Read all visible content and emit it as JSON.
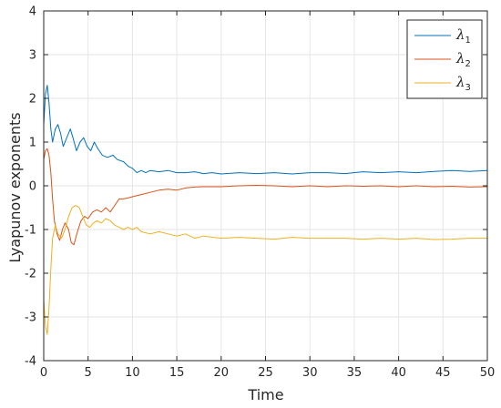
{
  "chart_data": {
    "type": "line",
    "title": "",
    "xlabel": "Time",
    "ylabel": "Lyapunov exponents",
    "xlim": [
      0,
      50
    ],
    "ylim": [
      -4,
      4
    ],
    "xticks": [
      0,
      5,
      10,
      15,
      20,
      25,
      30,
      35,
      40,
      45,
      50
    ],
    "yticks": [
      -4,
      -3,
      -2,
      -1,
      0,
      1,
      2,
      3,
      4
    ],
    "grid": true,
    "legend_position": "top-right",
    "series": [
      {
        "name_symbol": "λ",
        "name_sub": "1",
        "color": "#0072BD",
        "points": [
          [
            0,
            1.4
          ],
          [
            0.2,
            2.1
          ],
          [
            0.4,
            2.3
          ],
          [
            0.6,
            1.9
          ],
          [
            0.8,
            1.3
          ],
          [
            1.0,
            1.0
          ],
          [
            1.3,
            1.3
          ],
          [
            1.6,
            1.4
          ],
          [
            1.9,
            1.2
          ],
          [
            2.2,
            0.9
          ],
          [
            2.6,
            1.1
          ],
          [
            3.0,
            1.3
          ],
          [
            3.3,
            1.1
          ],
          [
            3.7,
            0.8
          ],
          [
            4.1,
            1.0
          ],
          [
            4.5,
            1.1
          ],
          [
            4.9,
            0.9
          ],
          [
            5.3,
            0.8
          ],
          [
            5.7,
            1.0
          ],
          [
            6.1,
            0.85
          ],
          [
            6.6,
            0.7
          ],
          [
            7.2,
            0.65
          ],
          [
            7.8,
            0.7
          ],
          [
            8.3,
            0.6
          ],
          [
            9.0,
            0.55
          ],
          [
            9.5,
            0.45
          ],
          [
            10.0,
            0.4
          ],
          [
            10.5,
            0.3
          ],
          [
            11.0,
            0.35
          ],
          [
            11.5,
            0.3
          ],
          [
            12.0,
            0.35
          ],
          [
            13.0,
            0.32
          ],
          [
            14.0,
            0.35
          ],
          [
            15.0,
            0.3
          ],
          [
            16.0,
            0.3
          ],
          [
            17.0,
            0.32
          ],
          [
            18.0,
            0.28
          ],
          [
            19.0,
            0.3
          ],
          [
            20.0,
            0.27
          ],
          [
            22.0,
            0.3
          ],
          [
            24.0,
            0.28
          ],
          [
            26.0,
            0.3
          ],
          [
            28.0,
            0.27
          ],
          [
            30.0,
            0.3
          ],
          [
            32.0,
            0.3
          ],
          [
            34.0,
            0.28
          ],
          [
            36.0,
            0.32
          ],
          [
            38.0,
            0.3
          ],
          [
            40.0,
            0.32
          ],
          [
            42.0,
            0.3
          ],
          [
            44.0,
            0.33
          ],
          [
            46.0,
            0.35
          ],
          [
            48.0,
            0.33
          ],
          [
            50.0,
            0.35
          ]
        ]
      },
      {
        "name_symbol": "λ",
        "name_sub": "2",
        "color": "#D95319",
        "points": [
          [
            0,
            0.6
          ],
          [
            0.2,
            0.8
          ],
          [
            0.4,
            0.85
          ],
          [
            0.6,
            0.7
          ],
          [
            0.8,
            0.3
          ],
          [
            1.0,
            -0.3
          ],
          [
            1.2,
            -0.8
          ],
          [
            1.5,
            -1.1
          ],
          [
            1.8,
            -1.25
          ],
          [
            2.1,
            -1.0
          ],
          [
            2.4,
            -0.85
          ],
          [
            2.8,
            -1.0
          ],
          [
            3.1,
            -1.3
          ],
          [
            3.4,
            -1.35
          ],
          [
            3.8,
            -1.05
          ],
          [
            4.2,
            -0.8
          ],
          [
            4.6,
            -0.7
          ],
          [
            5.0,
            -0.75
          ],
          [
            5.5,
            -0.6
          ],
          [
            6.0,
            -0.55
          ],
          [
            6.5,
            -0.6
          ],
          [
            7.0,
            -0.5
          ],
          [
            7.5,
            -0.6
          ],
          [
            8.0,
            -0.45
          ],
          [
            8.5,
            -0.3
          ],
          [
            9.0,
            -0.3
          ],
          [
            9.5,
            -0.28
          ],
          [
            10.0,
            -0.25
          ],
          [
            11.0,
            -0.2
          ],
          [
            12.0,
            -0.15
          ],
          [
            13.0,
            -0.1
          ],
          [
            14.0,
            -0.08
          ],
          [
            15.0,
            -0.1
          ],
          [
            16.0,
            -0.05
          ],
          [
            17.0,
            -0.03
          ],
          [
            18.0,
            -0.02
          ],
          [
            20.0,
            -0.02
          ],
          [
            22.0,
            0.0
          ],
          [
            24.0,
            0.01
          ],
          [
            26.0,
            0.0
          ],
          [
            28.0,
            -0.02
          ],
          [
            30.0,
            0.0
          ],
          [
            32.0,
            -0.02
          ],
          [
            34.0,
            0.0
          ],
          [
            36.0,
            -0.01
          ],
          [
            38.0,
            0.0
          ],
          [
            40.0,
            -0.02
          ],
          [
            42.0,
            0.0
          ],
          [
            44.0,
            -0.02
          ],
          [
            46.0,
            -0.01
          ],
          [
            48.0,
            -0.03
          ],
          [
            50.0,
            -0.02
          ]
        ]
      },
      {
        "name_symbol": "λ",
        "name_sub": "3",
        "color": "#EDB120",
        "points": [
          [
            0,
            -2.6
          ],
          [
            0.2,
            -3.2
          ],
          [
            0.4,
            -3.4
          ],
          [
            0.6,
            -2.8
          ],
          [
            0.8,
            -1.9
          ],
          [
            1.0,
            -1.2
          ],
          [
            1.3,
            -0.9
          ],
          [
            1.6,
            -1.1
          ],
          [
            2.0,
            -1.2
          ],
          [
            2.4,
            -1.0
          ],
          [
            2.8,
            -0.7
          ],
          [
            3.2,
            -0.5
          ],
          [
            3.6,
            -0.45
          ],
          [
            4.0,
            -0.5
          ],
          [
            4.4,
            -0.7
          ],
          [
            4.8,
            -0.9
          ],
          [
            5.2,
            -0.95
          ],
          [
            5.6,
            -0.85
          ],
          [
            6.0,
            -0.8
          ],
          [
            6.5,
            -0.85
          ],
          [
            7.0,
            -0.75
          ],
          [
            7.5,
            -0.8
          ],
          [
            8.0,
            -0.9
          ],
          [
            8.5,
            -0.95
          ],
          [
            9.0,
            -1.0
          ],
          [
            9.5,
            -0.95
          ],
          [
            10.0,
            -1.0
          ],
          [
            10.5,
            -0.95
          ],
          [
            11.0,
            -1.05
          ],
          [
            12.0,
            -1.1
          ],
          [
            13.0,
            -1.05
          ],
          [
            14.0,
            -1.1
          ],
          [
            15.0,
            -1.15
          ],
          [
            16.0,
            -1.1
          ],
          [
            17.0,
            -1.2
          ],
          [
            18.0,
            -1.15
          ],
          [
            20.0,
            -1.2
          ],
          [
            22.0,
            -1.18
          ],
          [
            24.0,
            -1.2
          ],
          [
            26.0,
            -1.22
          ],
          [
            28.0,
            -1.18
          ],
          [
            30.0,
            -1.2
          ],
          [
            32.0,
            -1.2
          ],
          [
            34.0,
            -1.2
          ],
          [
            36.0,
            -1.22
          ],
          [
            38.0,
            -1.2
          ],
          [
            40.0,
            -1.22
          ],
          [
            42.0,
            -1.2
          ],
          [
            44.0,
            -1.23
          ],
          [
            46.0,
            -1.22
          ],
          [
            48.0,
            -1.2
          ],
          [
            50.0,
            -1.2
          ]
        ]
      }
    ]
  }
}
